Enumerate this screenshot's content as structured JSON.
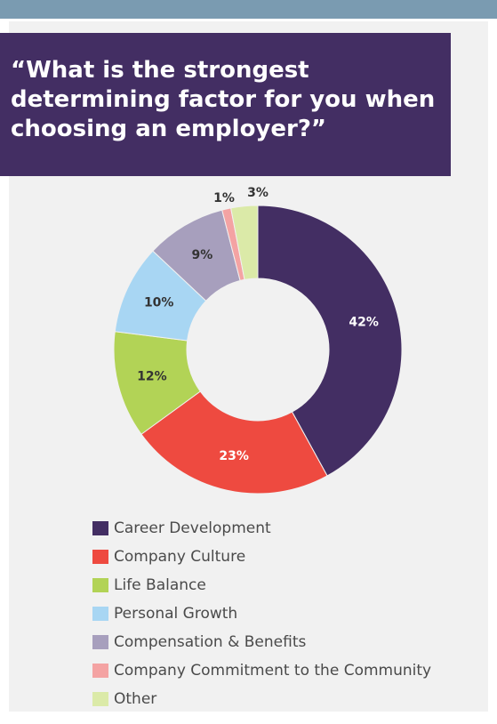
{
  "title": "“What is the strongest determining factor for you when choosing an employer?”",
  "chart_data": {
    "type": "pie",
    "donut": true,
    "legend_position": "bottom",
    "slices": [
      {
        "label": "Career Development",
        "value": 42,
        "display": "42%",
        "color": "#432e63",
        "text_color": "#ffffff"
      },
      {
        "label": "Company Culture",
        "value": 23,
        "display": "23%",
        "color": "#ee4a40",
        "text_color": "#ffffff"
      },
      {
        "label": "Life Balance",
        "value": 12,
        "display": "12%",
        "color": "#b2d356",
        "text_color": "#333333"
      },
      {
        "label": "Personal Growth",
        "value": 10,
        "display": "10%",
        "color": "#a8d6f3",
        "text_color": "#333333"
      },
      {
        "label": "Compensation & Benefits",
        "value": 9,
        "display": "9%",
        "color": "#a79fbd",
        "text_color": "#333333"
      },
      {
        "label": "Company Commitment to the Community",
        "value": 1,
        "display": "1%",
        "color": "#f4a3a3",
        "text_color": "#333333"
      },
      {
        "label": "Other",
        "value": 3,
        "display": "3%",
        "color": "#dbeaa8",
        "text_color": "#333333"
      }
    ]
  }
}
